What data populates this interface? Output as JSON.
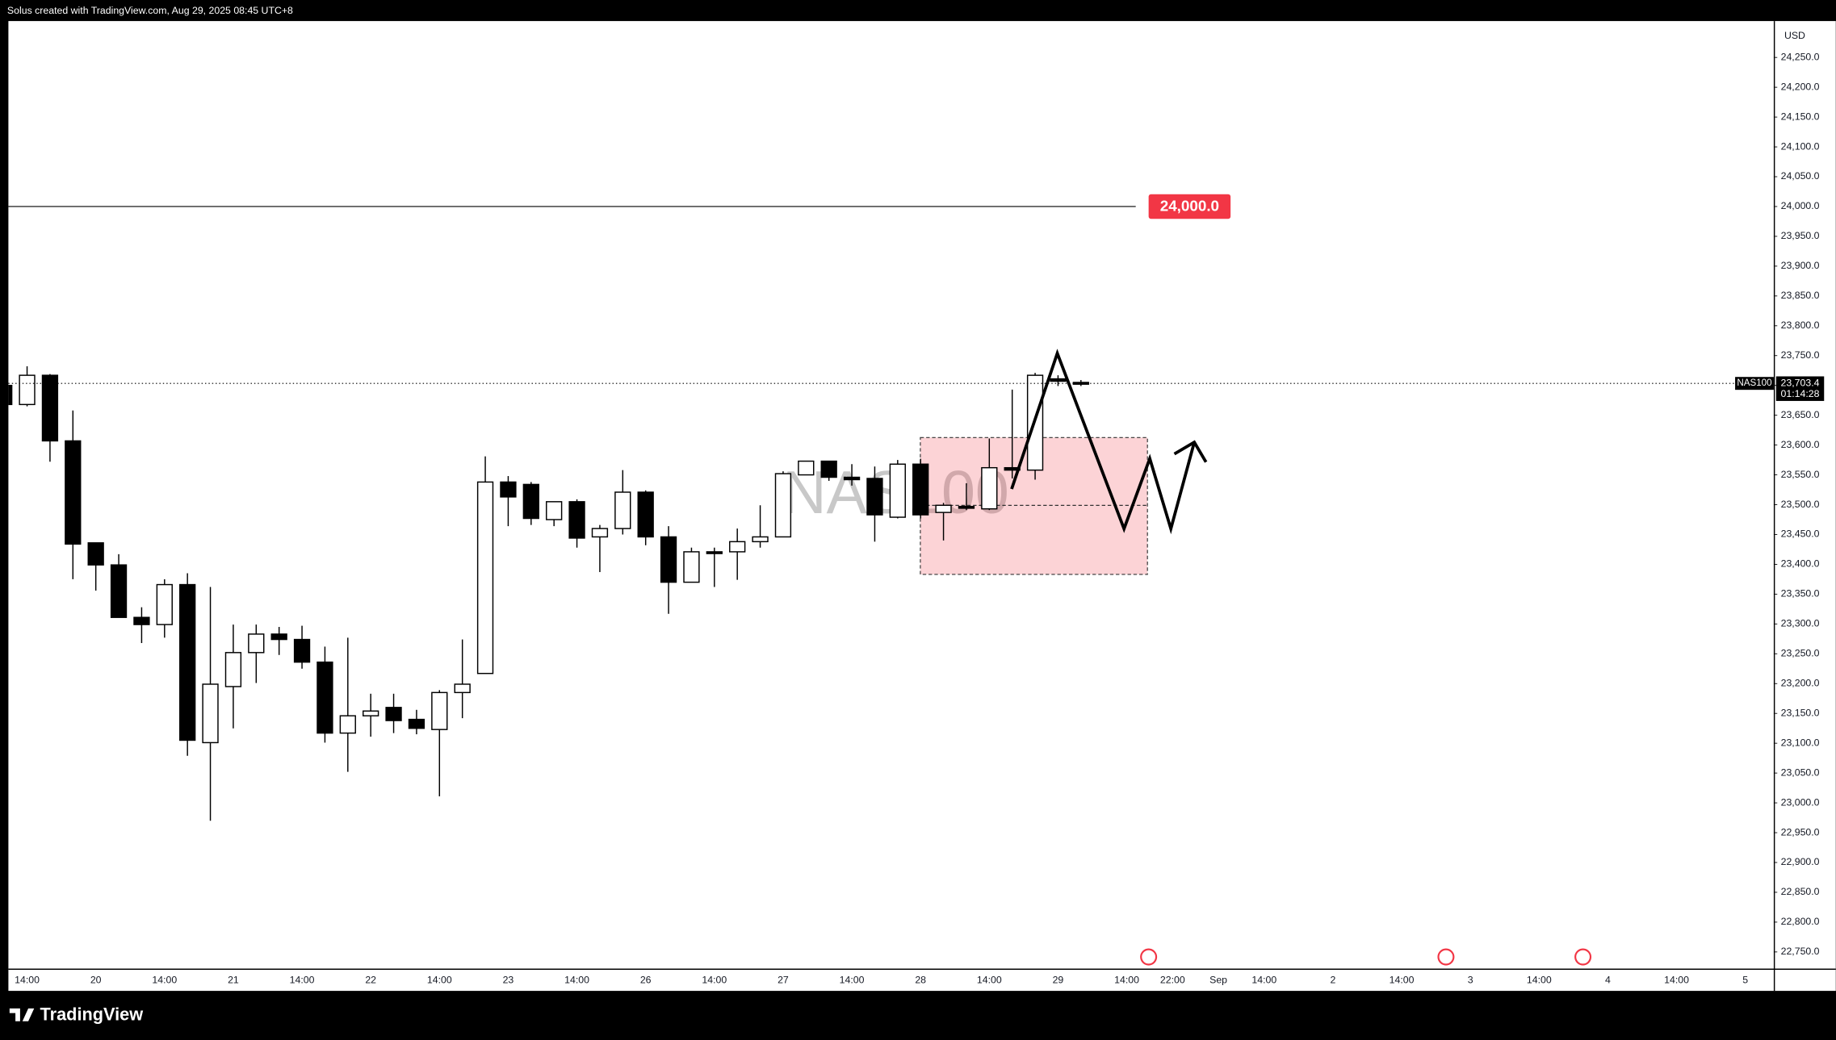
{
  "chart_data": {
    "type": "candlestick",
    "title": "Solus created with TradingView.com, Aug 29, 2025 08:45 UTC+8",
    "brand": "TradingView",
    "currency": "USD",
    "watermark": "NAS100",
    "symbol": "NAS100",
    "last_price": {
      "value": 23703.4,
      "label": "23,703.4"
    },
    "countdown": "01:14:28",
    "price_lines": [
      {
        "value": 24000,
        "label": "24,000.0",
        "color": "#f23645"
      }
    ],
    "up_color": "#ffffff",
    "down_color": "#000000",
    "categories": [
      null,
      "14:00",
      null,
      null,
      "20",
      null,
      null,
      "14:00",
      null,
      null,
      "21",
      null,
      null,
      "14:00",
      null,
      null,
      "22",
      null,
      null,
      "14:00",
      null,
      null,
      "23",
      null,
      null,
      "14:00",
      null,
      null,
      "26",
      null,
      null,
      "14:00",
      null,
      null,
      "27",
      null,
      null,
      "14:00",
      null,
      null,
      "28",
      null,
      null,
      "14:00",
      null,
      null,
      "29",
      null,
      null,
      "14:00",
      null,
      "22:00",
      null,
      "Sep",
      null,
      "14:00",
      null,
      null,
      "2",
      null,
      null,
      "14:00",
      null,
      null,
      "3",
      null,
      null,
      "14:00",
      null,
      null,
      "4",
      null,
      null,
      "14:00",
      null,
      null,
      "5",
      null
    ],
    "open": [
      23700,
      23668,
      23717,
      23607,
      23436,
      23399,
      23311,
      23299,
      23366,
      23101,
      23195,
      23252,
      23283,
      23274,
      23236,
      23117,
      23146,
      23160,
      23140,
      23123,
      23185,
      23217,
      23538,
      23534,
      23475,
      23505,
      23446,
      23460,
      23521,
      23446,
      23370,
      23421,
      23421,
      23438,
      23446,
      23550,
      23573,
      23546,
      23544,
      23479,
      23568,
      23487,
      23497,
      23493,
      23562,
      23558,
      23711,
      23705,
      null,
      null,
      null,
      null,
      null,
      null,
      null,
      null,
      null,
      null,
      null,
      null,
      null,
      null,
      null,
      null,
      null,
      null,
      null,
      null,
      null,
      null,
      null,
      null,
      null,
      null,
      null,
      null,
      null,
      null
    ],
    "high": [
      23705,
      23732,
      23719,
      23658,
      23436,
      23417,
      23328,
      23375,
      23385,
      23362,
      23299,
      23299,
      23295,
      23297,
      23262,
      23277,
      23183,
      23183,
      23156,
      23189,
      23274,
      23581,
      23548,
      23538,
      23505,
      23509,
      23466,
      23558,
      23524,
      23464,
      23428,
      23428,
      23460,
      23499,
      23556,
      23573,
      23573,
      23568,
      23564,
      23575,
      23577,
      23503,
      23536,
      23611,
      23693,
      23721,
      23717,
      23709,
      null,
      null,
      null,
      null,
      null,
      null,
      null,
      null,
      null,
      null,
      null,
      null,
      null,
      null,
      null,
      null,
      null,
      null,
      null,
      null,
      null,
      null,
      null,
      null,
      null,
      null,
      null,
      null,
      null,
      null
    ],
    "low": [
      23660,
      23665,
      23572,
      23375,
      23356,
      23311,
      23268,
      23277,
      23079,
      22970,
      23125,
      23201,
      23248,
      23225,
      23101,
      23052,
      23111,
      23117,
      23115,
      23011,
      23142,
      23217,
      23464,
      23466,
      23464,
      23428,
      23387,
      23450,
      23432,
      23317,
      23370,
      23362,
      23374,
      23428,
      23446,
      23550,
      23540,
      23532,
      23438,
      23477,
      23477,
      23440,
      23491,
      23491,
      23544,
      23542,
      23699,
      23699,
      null,
      null,
      null,
      null,
      null,
      null,
      null,
      null,
      null,
      null,
      null,
      null,
      null,
      null,
      null,
      null,
      null,
      null,
      null,
      null,
      null,
      null,
      null,
      null,
      null,
      null,
      null,
      null,
      null,
      null
    ],
    "close": [
      23668,
      23717,
      23607,
      23434,
      23399,
      23311,
      23299,
      23366,
      23105,
      23199,
      23252,
      23283,
      23274,
      23236,
      23117,
      23146,
      23154,
      23138,
      23125,
      23185,
      23199,
      23538,
      23513,
      23477,
      23505,
      23444,
      23460,
      23521,
      23446,
      23370,
      23421,
      23419,
      23438,
      23446,
      23552,
      23573,
      23546,
      23542,
      23483,
      23568,
      23483,
      23499,
      23495,
      23562,
      23558,
      23717,
      23707,
      23703.4,
      null,
      null,
      null,
      null,
      null,
      null,
      null,
      null,
      null,
      null,
      null,
      null,
      null,
      null,
      null,
      null,
      null,
      null,
      null,
      null,
      null,
      null,
      null,
      null,
      null,
      null,
      null,
      null,
      null,
      null
    ],
    "ylim": [
      22722,
      24311
    ],
    "yticks": [
      {
        "value": 22750,
        "label": "22,750.0"
      },
      {
        "value": 22800,
        "label": "22,800.0"
      },
      {
        "value": 22850,
        "label": "22,850.0"
      },
      {
        "value": 22900,
        "label": "22,900.0"
      },
      {
        "value": 22950,
        "label": "22,950.0"
      },
      {
        "value": 23000,
        "label": "23,000.0"
      },
      {
        "value": 23050,
        "label": "23,050.0"
      },
      {
        "value": 23100,
        "label": "23,100.0"
      },
      {
        "value": 23150,
        "label": "23,150.0"
      },
      {
        "value": 23200,
        "label": "23,200.0"
      },
      {
        "value": 23250,
        "label": "23,250.0"
      },
      {
        "value": 23300,
        "label": "23,300.0"
      },
      {
        "value": 23350,
        "label": "23,350.0"
      },
      {
        "value": 23400,
        "label": "23,400.0"
      },
      {
        "value": 23450,
        "label": "23,450.0"
      },
      {
        "value": 23500,
        "label": "23,500.0"
      },
      {
        "value": 23550,
        "label": "23,550.0"
      },
      {
        "value": 23600,
        "label": "23,600.0"
      },
      {
        "value": 23650,
        "label": "23,650.0"
      },
      {
        "value": 23700,
        "label": "23,700.0"
      },
      {
        "value": 23750,
        "label": "23,750.0"
      },
      {
        "value": 23800,
        "label": "23,800.0"
      },
      {
        "value": 23850,
        "label": "23,850.0"
      },
      {
        "value": 23900,
        "label": "23,900.0"
      },
      {
        "value": 23950,
        "label": "23,950.0"
      },
      {
        "value": 24000,
        "label": "24,000.0"
      },
      {
        "value": 24050,
        "label": "24,050.0"
      },
      {
        "value": 24100,
        "label": "24,100.0"
      },
      {
        "value": 24150,
        "label": "24,150.0"
      },
      {
        "value": 24200,
        "label": "24,200.0"
      },
      {
        "value": 24250,
        "label": "24,250.0"
      }
    ],
    "grid": false
  }
}
